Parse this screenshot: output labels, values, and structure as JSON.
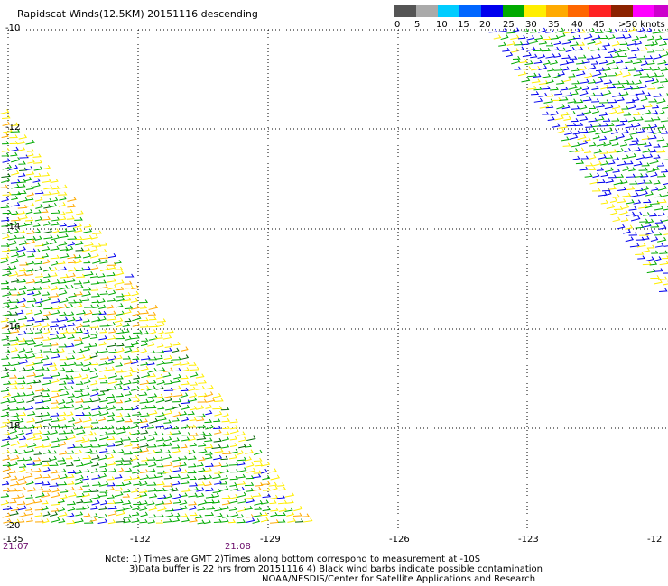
{
  "title": "Rapidscat Winds(12.5KM) 20151116 descending",
  "legend": {
    "colors": [
      "#555555",
      "#aaaaaa",
      "#00ccff",
      "#0066ff",
      "#0000ee",
      "#00aa00",
      "#ffee00",
      "#ffaa00",
      "#ff6600",
      "#ff2222",
      "#8b2200",
      "#ff00ff",
      "#cc00cc",
      "#660099"
    ],
    "labels": [
      "0",
      "5",
      "10",
      "15",
      "20",
      "25",
      "30",
      "35",
      "40",
      "45",
      ">50 knots"
    ]
  },
  "axes": {
    "lat_labels": [
      "-10",
      "-12",
      "-14",
      "-16",
      "-18",
      "-20"
    ],
    "lon_labels": [
      "-135",
      "-132",
      "-129",
      "-126",
      "-123",
      "-12"
    ]
  },
  "times": [
    "21:07",
    "21:08"
  ],
  "notes": [
    "Note: 1) Times are GMT 2)Times along bottom correspond to measurement at -10S",
    "3)Data buffer is 22 hrs from 20151116 4) Black wind barbs indicate possible contamination",
    "NOAA/NESDIS/Center for Satellite Applications and Research"
  ]
}
